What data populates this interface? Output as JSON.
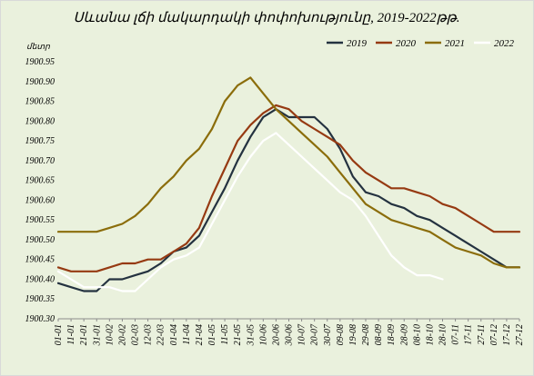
{
  "chart_data": {
    "type": "line",
    "title": "Սևանա լճի մակարդակի փոփոխությունը, 2019-2022թթ.",
    "ylabel": "մետր",
    "xlabel": "",
    "ylim": [
      1900.3,
      1900.95
    ],
    "yticks": [
      "1900.30",
      "1900.35",
      "1900.40",
      "1900.45",
      "1900.50",
      "1900.55",
      "1900.60",
      "1900.65",
      "1900.70",
      "1900.75",
      "1900.80",
      "1900.85",
      "1900.90",
      "1900.95"
    ],
    "xticks": [
      "01-01",
      "11-01",
      "21-01",
      "31-01",
      "10-02",
      "20-02",
      "02-03",
      "12-03",
      "22-03",
      "01-04",
      "11-04",
      "21-04",
      "01-05",
      "11-05",
      "21-05",
      "31-05",
      "10-06",
      "20-06",
      "30-06",
      "10-07",
      "20-07",
      "30-07",
      "09-08",
      "19-08",
      "29-08",
      "08-09",
      "18-09",
      "28-09",
      "08-10",
      "18-10",
      "28-10",
      "07-11",
      "17-11",
      "27-11",
      "07-12",
      "17-12",
      "27-12"
    ],
    "grid": false,
    "legend_position": "top-right",
    "colors": {
      "2019": "#243240",
      "2020": "#963a12",
      "2021": "#8b6d0b",
      "2022": "#ffffff"
    },
    "series": [
      {
        "name": "2019",
        "color": "#243240",
        "x": [
          0,
          1,
          2,
          3,
          4,
          5,
          6,
          7,
          8,
          9,
          10,
          11,
          12,
          13,
          14,
          15,
          16,
          17,
          18,
          19,
          20,
          21,
          22,
          23,
          24,
          25,
          26,
          27,
          28,
          29,
          30,
          31,
          32,
          33,
          34,
          35,
          36
        ],
        "y": [
          1900.39,
          1900.38,
          1900.37,
          1900.37,
          1900.4,
          1900.4,
          1900.41,
          1900.42,
          1900.44,
          1900.47,
          1900.48,
          1900.51,
          1900.57,
          1900.63,
          1900.7,
          1900.76,
          1900.81,
          1900.83,
          1900.81,
          1900.81,
          1900.81,
          1900.78,
          1900.73,
          1900.66,
          1900.62,
          1900.61,
          1900.59,
          1900.58,
          1900.56,
          1900.55,
          1900.53,
          1900.51,
          1900.49,
          1900.47,
          1900.45,
          1900.43,
          1900.43
        ]
      },
      {
        "name": "2020",
        "color": "#963a12",
        "x": [
          0,
          1,
          2,
          3,
          4,
          5,
          6,
          7,
          8,
          9,
          10,
          11,
          12,
          13,
          14,
          15,
          16,
          17,
          18,
          19,
          20,
          21,
          22,
          23,
          24,
          25,
          26,
          27,
          28,
          29,
          30,
          31,
          32,
          33,
          34,
          35,
          36
        ],
        "y": [
          1900.43,
          1900.42,
          1900.42,
          1900.42,
          1900.43,
          1900.44,
          1900.44,
          1900.45,
          1900.45,
          1900.47,
          1900.49,
          1900.53,
          1900.61,
          1900.68,
          1900.75,
          1900.79,
          1900.82,
          1900.84,
          1900.83,
          1900.8,
          1900.78,
          1900.76,
          1900.74,
          1900.7,
          1900.67,
          1900.65,
          1900.63,
          1900.63,
          1900.62,
          1900.61,
          1900.59,
          1900.58,
          1900.56,
          1900.54,
          1900.52,
          1900.52,
          1900.52
        ]
      },
      {
        "name": "2021",
        "color": "#8b6d0b",
        "x": [
          0,
          1,
          2,
          3,
          4,
          5,
          6,
          7,
          8,
          9,
          10,
          11,
          12,
          13,
          14,
          15,
          16,
          17,
          18,
          19,
          20,
          21,
          22,
          23,
          24,
          25,
          26,
          27,
          28,
          29,
          30,
          31,
          32,
          33,
          34,
          35,
          36
        ],
        "y": [
          1900.52,
          1900.52,
          1900.52,
          1900.52,
          1900.53,
          1900.54,
          1900.56,
          1900.59,
          1900.63,
          1900.66,
          1900.7,
          1900.73,
          1900.78,
          1900.85,
          1900.89,
          1900.91,
          1900.87,
          1900.83,
          1900.8,
          1900.77,
          1900.74,
          1900.71,
          1900.67,
          1900.63,
          1900.59,
          1900.57,
          1900.55,
          1900.54,
          1900.53,
          1900.52,
          1900.5,
          1900.48,
          1900.47,
          1900.46,
          1900.44,
          1900.43,
          1900.43
        ]
      },
      {
        "name": "2022",
        "color": "#ffffff",
        "x": [
          0,
          1,
          2,
          3,
          4,
          5,
          6,
          7,
          8,
          9,
          10,
          11,
          12,
          13,
          14,
          15,
          16,
          17,
          18,
          19,
          20,
          21,
          22,
          23,
          24,
          25,
          26,
          27,
          28,
          29,
          30
        ],
        "y": [
          1900.42,
          1900.4,
          1900.38,
          1900.38,
          1900.38,
          1900.37,
          1900.37,
          1900.4,
          1900.43,
          1900.45,
          1900.46,
          1900.48,
          1900.54,
          1900.6,
          1900.66,
          1900.71,
          1900.75,
          1900.77,
          1900.74,
          1900.71,
          1900.68,
          1900.65,
          1900.62,
          1900.6,
          1900.56,
          1900.51,
          1900.46,
          1900.43,
          1900.41,
          1900.41,
          1900.4
        ]
      }
    ]
  }
}
